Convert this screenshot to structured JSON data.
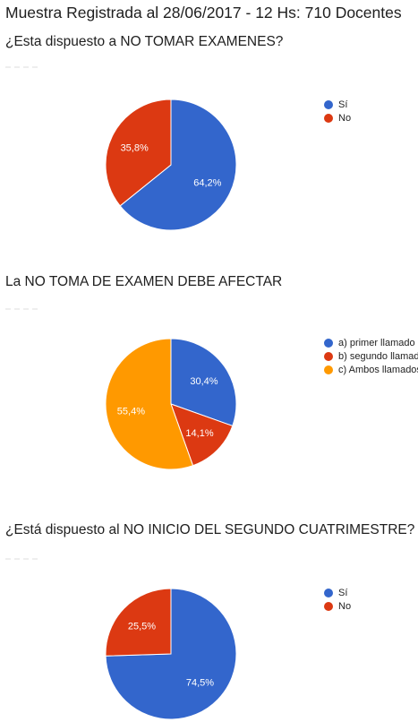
{
  "header": {
    "title": "Muestra Registrada al 28/06/2017 - 12 Hs: 710 Docentes"
  },
  "chart_data": [
    {
      "type": "pie",
      "title": "¿Esta dispuesto a NO TOMAR EXAMENES?",
      "categories": [
        "Sí",
        "No"
      ],
      "values": [
        64.2,
        35.8
      ],
      "labels": [
        "64,2%",
        "35,8%"
      ],
      "colors": [
        "#3366cc",
        "#dc3912"
      ],
      "legend": "right"
    },
    {
      "type": "pie",
      "title": "La NO TOMA DE EXAMEN DEBE AFECTAR",
      "categories": [
        "a) primer llamado",
        "b) segundo llamado",
        "c) Ambos llamados"
      ],
      "values": [
        30.4,
        14.1,
        55.4
      ],
      "labels": [
        "30,4%",
        "14,1%",
        "55,4%"
      ],
      "colors": [
        "#3366cc",
        "#dc3912",
        "#ff9900"
      ],
      "legend": "right"
    },
    {
      "type": "pie",
      "title": "¿Está dispuesto al NO INICIO DEL SEGUNDO CUATRIMESTRE?",
      "categories": [
        "Sí",
        "No"
      ],
      "values": [
        74.5,
        25.5
      ],
      "labels": [
        "74,5%",
        "25,5%"
      ],
      "colors": [
        "#3366cc",
        "#dc3912"
      ],
      "legend": "right"
    }
  ]
}
